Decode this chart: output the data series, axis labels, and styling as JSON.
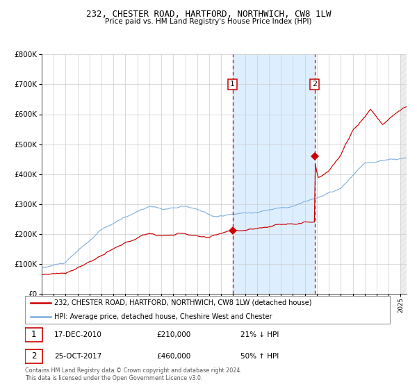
{
  "title": "232, CHESTER ROAD, HARTFORD, NORTHWICH, CW8 1LW",
  "subtitle": "Price paid vs. HM Land Registry's House Price Index (HPI)",
  "legend_line1": "232, CHESTER ROAD, HARTFORD, NORTHWICH, CW8 1LW (detached house)",
  "legend_line2": "HPI: Average price, detached house, Cheshire West and Chester",
  "annotation1_date": "17-DEC-2010",
  "annotation1_price": "£210,000",
  "annotation1_hpi": "21% ↓ HPI",
  "annotation2_date": "25-OCT-2017",
  "annotation2_price": "£460,000",
  "annotation2_hpi": "50% ↑ HPI",
  "footer": "Contains HM Land Registry data © Crown copyright and database right 2024.\nThis data is licensed under the Open Government Licence v3.0.",
  "sale1_x": 2010.96,
  "sale1_y": 210000,
  "sale2_x": 2017.82,
  "sale2_y": 460000,
  "hpi_color": "#7aaadd",
  "price_color": "#cc0000",
  "shading_color": "#ddeeff",
  "grid_color": "#cccccc",
  "bg_color": "#ffffff",
  "ylim": [
    0,
    800000
  ],
  "xlim_start": 1995.0,
  "xlim_end": 2025.5
}
